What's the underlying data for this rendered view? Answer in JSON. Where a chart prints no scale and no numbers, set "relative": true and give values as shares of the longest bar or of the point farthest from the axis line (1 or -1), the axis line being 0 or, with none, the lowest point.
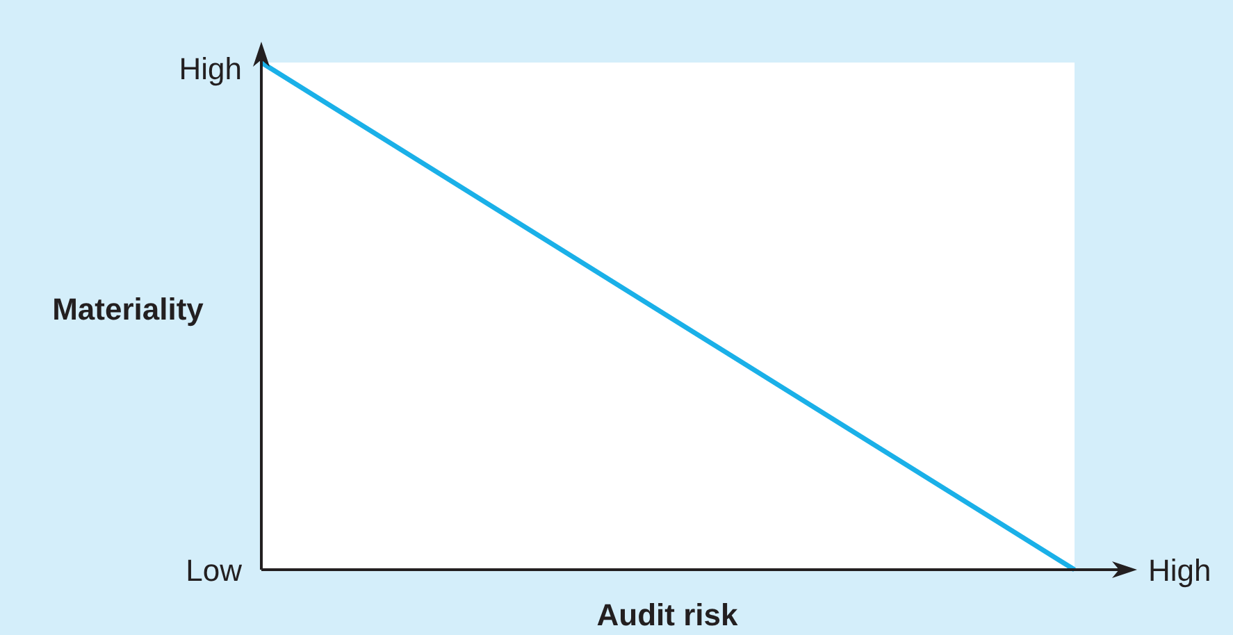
{
  "chart_data": {
    "type": "line",
    "relative": true,
    "categories": [
      null,
      null
    ],
    "series": [
      {
        "color": "#1ab0e8",
        "values": [
          1,
          0
        ]
      }
    ],
    "xlabel": "Audit risk",
    "ylabel": "Materiality",
    "annotations": [
      "High",
      "Low",
      "High"
    ],
    "line_style": "solid"
  }
}
